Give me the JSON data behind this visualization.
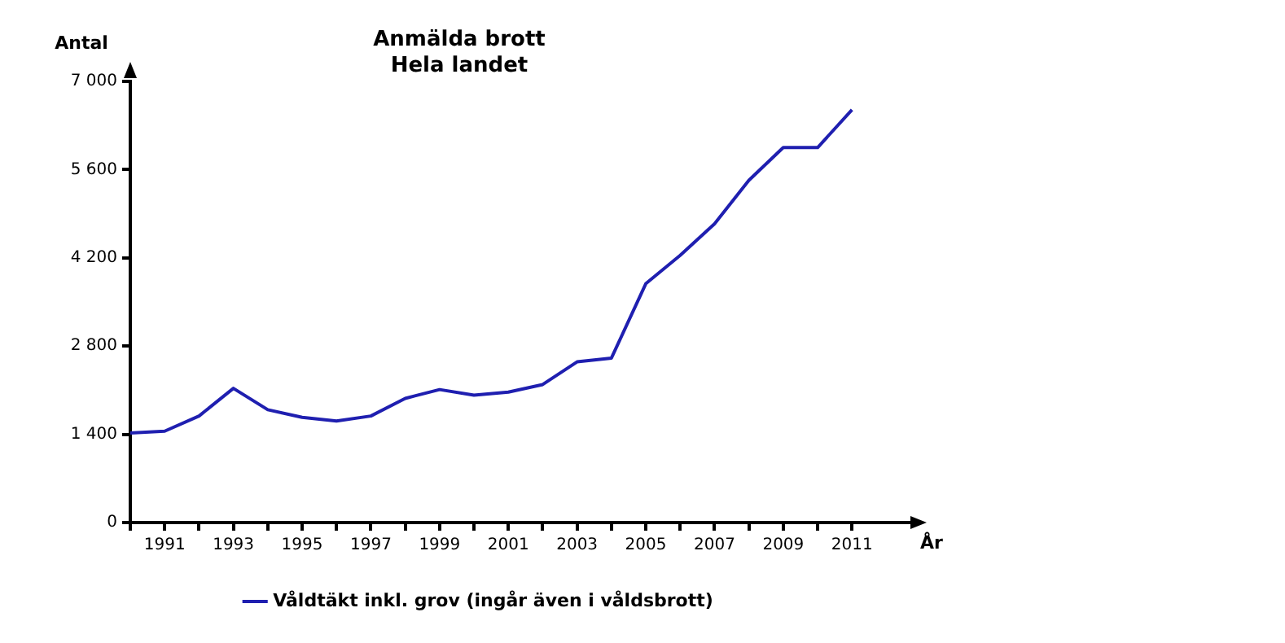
{
  "chart_data": {
    "type": "line",
    "title": "Anmälda brott",
    "subtitle": "Hela landet",
    "xlabel": "År",
    "ylabel": "Antal",
    "x": [
      1990,
      1991,
      1992,
      1993,
      1994,
      1995,
      1996,
      1997,
      1998,
      1999,
      2000,
      2001,
      2002,
      2003,
      2004,
      2005,
      2006,
      2007,
      2008,
      2009,
      2010,
      2011
    ],
    "series": [
      {
        "name": "Våldtäkt inkl. grov (ingår även i våldsbrott)",
        "color": "#1f1fb0",
        "values": [
          1420,
          1450,
          1690,
          2130,
          1790,
          1670,
          1610,
          1690,
          1970,
          2110,
          2020,
          2070,
          2190,
          2550,
          2610,
          3790,
          4240,
          4740,
          5430,
          5950,
          5950,
          6550
        ]
      }
    ],
    "xlim": [
      1990,
      2012.7
    ],
    "xticks": [
      {
        "value": 1990,
        "label": null
      },
      1991,
      {
        "value": 1992,
        "label": null
      },
      1993,
      {
        "value": 1994,
        "label": null
      },
      1995,
      {
        "value": 1996,
        "label": null
      },
      1997,
      {
        "value": 1998,
        "label": null
      },
      1999,
      {
        "value": 2000,
        "label": null
      },
      2001,
      {
        "value": 2002,
        "label": null
      },
      2003,
      {
        "value": 2004,
        "label": null
      },
      2005,
      {
        "value": 2006,
        "label": null
      },
      2007,
      {
        "value": 2008,
        "label": null
      },
      2009,
      {
        "value": 2010,
        "label": null
      },
      2011
    ],
    "ylim": [
      0,
      7000
    ],
    "yticks": [
      0,
      {
        "value": 1400,
        "label": "1 400"
      },
      {
        "value": 2800,
        "label": "2 800"
      },
      {
        "value": 4200,
        "label": "4 200"
      },
      {
        "value": 5600,
        "label": "5 600"
      },
      {
        "value": 7000,
        "label": "7 000"
      }
    ],
    "grid": false,
    "legend": "bottom",
    "marker": "none",
    "line_style": "solid"
  }
}
